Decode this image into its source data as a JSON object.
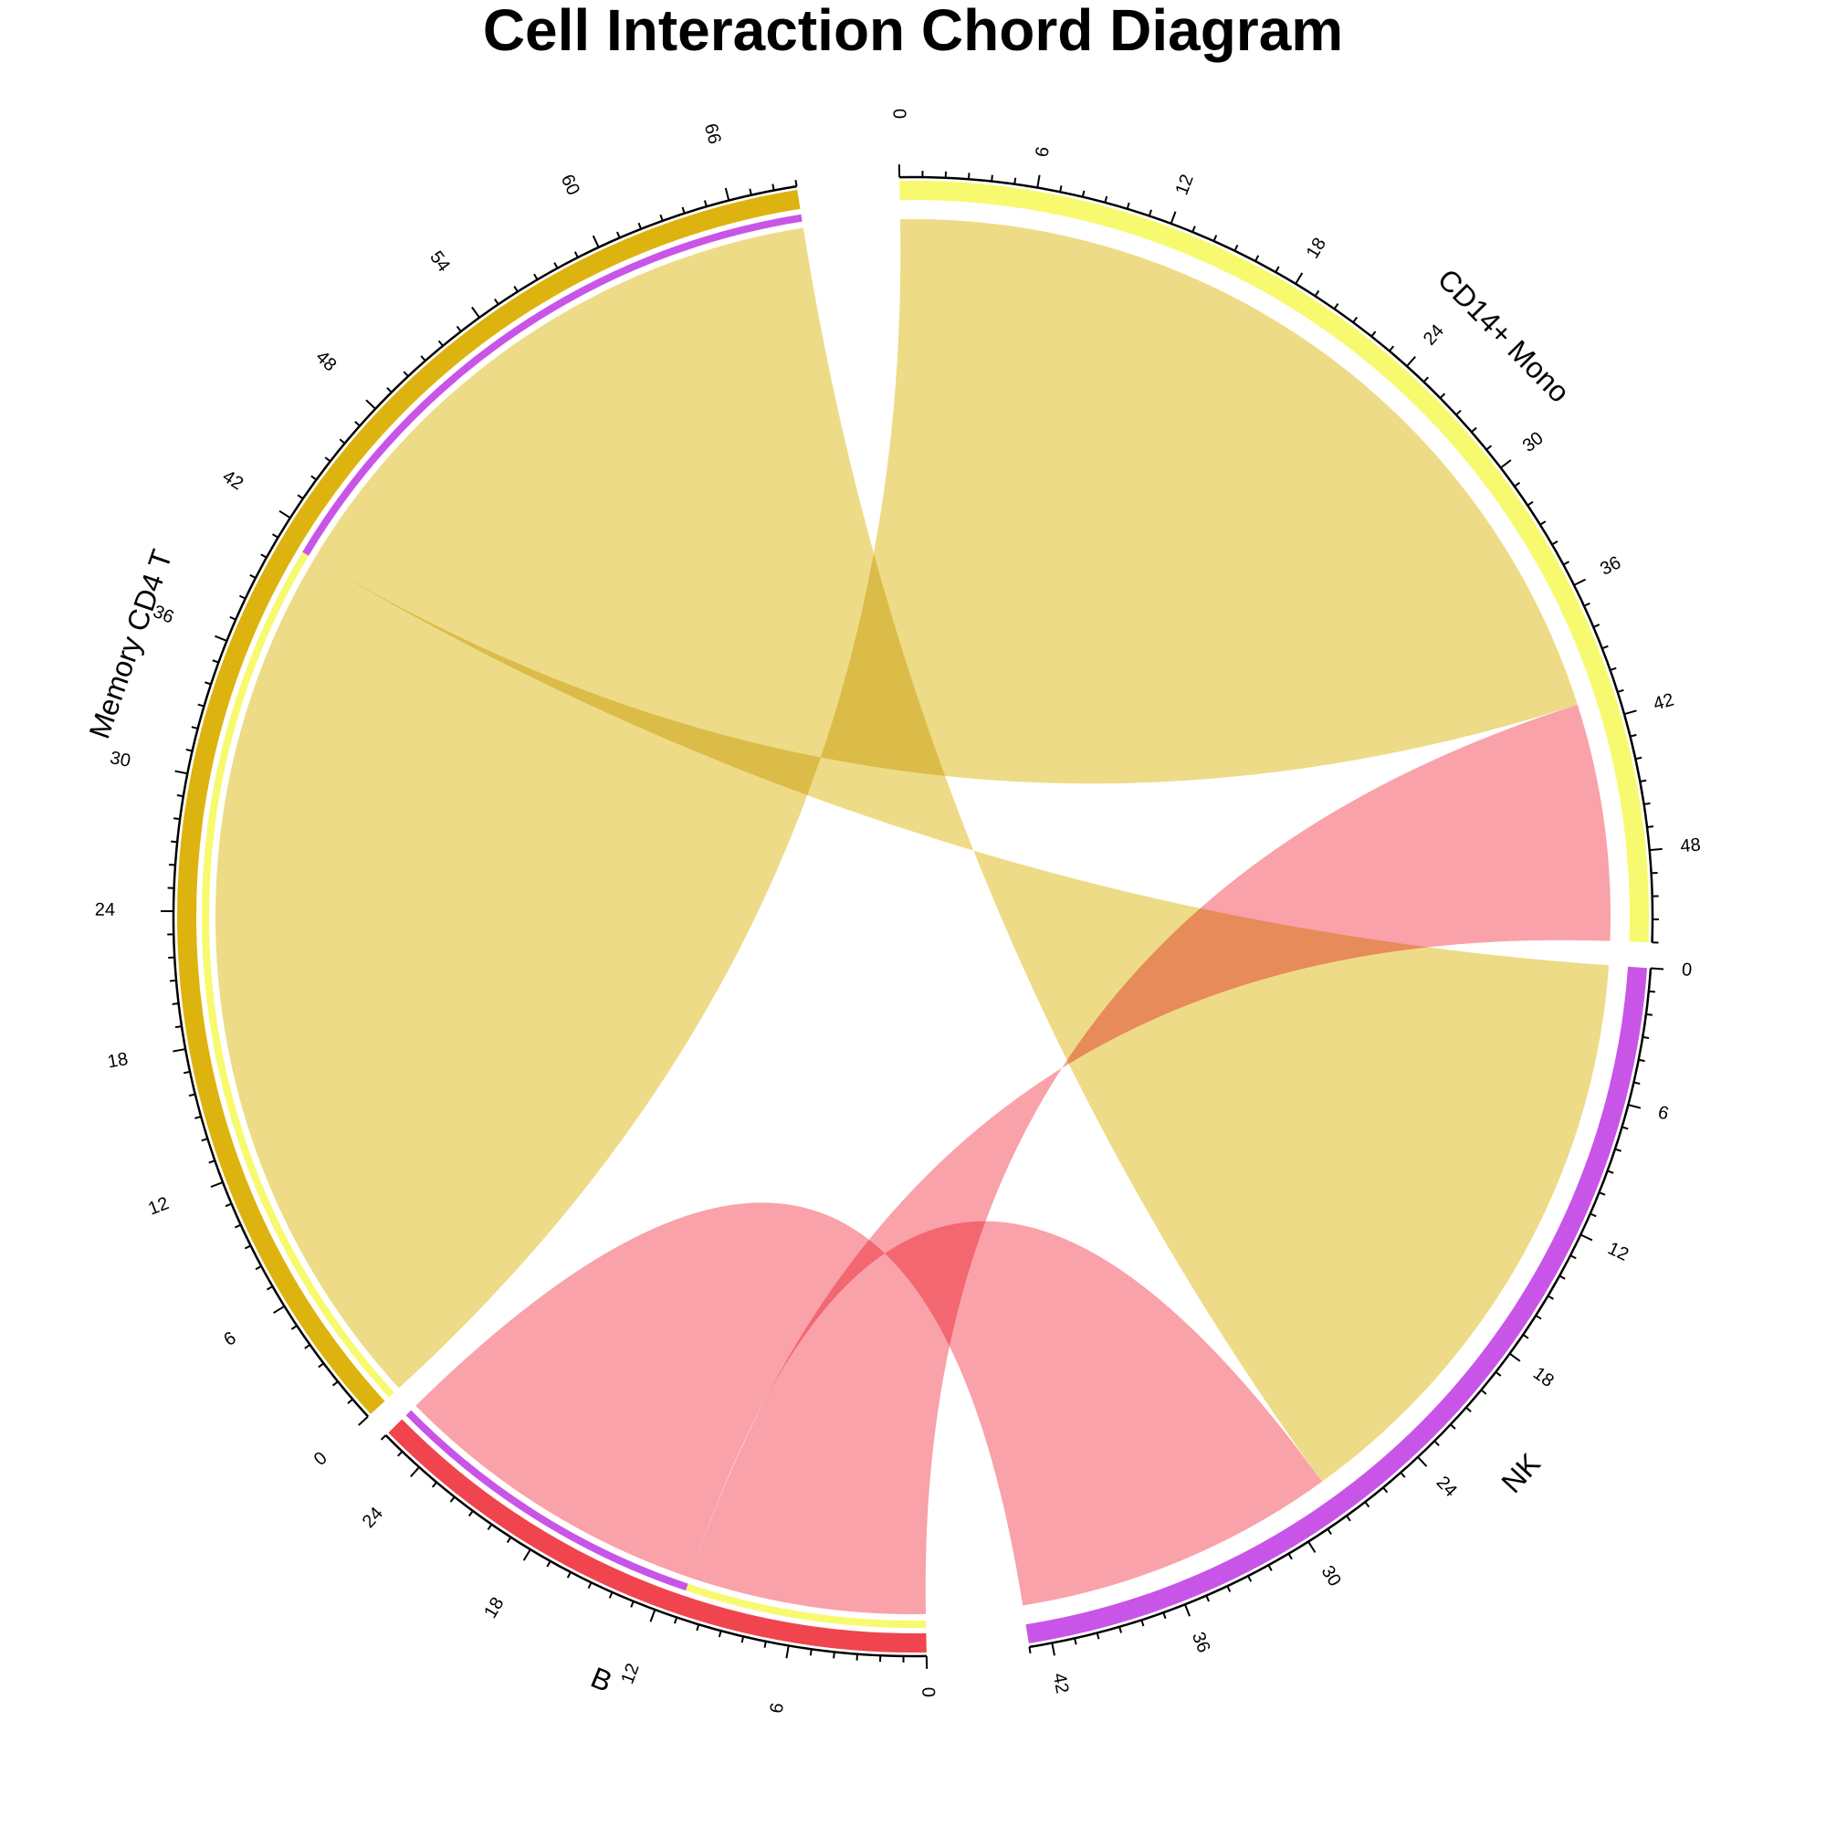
{
  "chart_data": {
    "type": "chord",
    "title": "Cell Interaction Chord Diagram",
    "sectors": [
      {
        "name": "NK",
        "total": 43,
        "color": "#C855E8",
        "tick_step": 6
      },
      {
        "name": "B",
        "total": 26,
        "color": "#F0454E",
        "tick_step": 6
      },
      {
        "name": "Memory CD4 T",
        "total": 69,
        "color": "#DDB30F",
        "tick_step": 6
      },
      {
        "name": "CD14+ Mono",
        "total": 52,
        "color": "#F7FA6E",
        "tick_step": 6
      }
    ],
    "links": [
      {
        "from": "NK",
        "to": "Memory CD4 T",
        "value": 28,
        "color": "#EDDB87"
      },
      {
        "from": "NK",
        "to": "B",
        "value": 15,
        "color": "#F9A2A9"
      },
      {
        "from": "CD14+ Mono",
        "to": "Memory CD4 T",
        "value": 41,
        "color": "#EDDB87"
      },
      {
        "from": "CD14+ Mono",
        "to": "B",
        "value": 11,
        "color": "#F9A2A9"
      }
    ]
  }
}
